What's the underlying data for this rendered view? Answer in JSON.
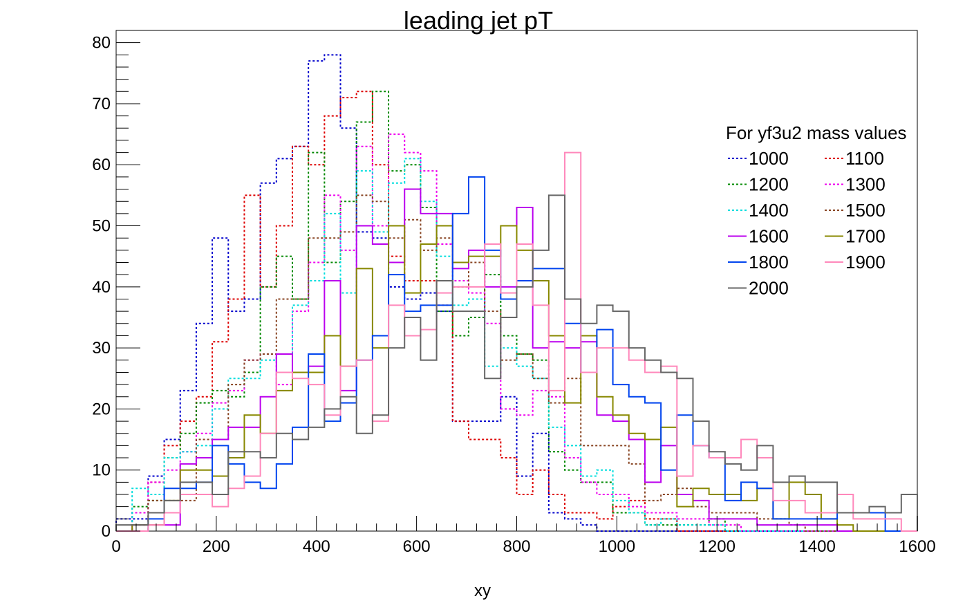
{
  "chart_data": {
    "type": "line",
    "drawstyle": "step-histogram",
    "title": "leading jet pT",
    "xlabel": "xy",
    "ylabel": "",
    "xlim": [
      0,
      1600
    ],
    "ylim": [
      0,
      82
    ],
    "bin_width": 32,
    "bin_edges_start": 0,
    "x_ticks": [
      0,
      200,
      400,
      600,
      800,
      1000,
      1200,
      1400,
      1600
    ],
    "y_ticks": [
      0,
      10,
      20,
      30,
      40,
      50,
      60,
      70,
      80
    ],
    "grid": false,
    "legend": {
      "title": "For yf3u2 mass values",
      "placement": "top-right",
      "columns": 2
    },
    "series": [
      {
        "name": "1000",
        "color": "#0000cc",
        "dashed": true,
        "values": [
          2,
          2,
          9,
          15,
          23,
          34,
          48,
          36,
          38,
          57,
          61,
          63,
          77,
          78,
          66,
          49,
          48,
          40,
          38,
          39,
          36,
          18,
          18,
          18,
          22,
          9,
          16,
          3,
          2,
          1,
          0,
          0,
          0,
          0,
          0,
          0,
          0,
          0,
          0,
          0,
          0,
          0,
          0,
          0,
          0,
          0,
          0,
          0,
          0,
          0
        ]
      },
      {
        "name": "1100",
        "color": "#dd0000",
        "dashed": true,
        "values": [
          0,
          1,
          8,
          14,
          18,
          22,
          31,
          38,
          55,
          40,
          50,
          63,
          60,
          68,
          71,
          72,
          60,
          45,
          41,
          41,
          37,
          18,
          15,
          15,
          12,
          6,
          10,
          6,
          3,
          3,
          2,
          4,
          5,
          2,
          2,
          0,
          0,
          0,
          0,
          0,
          0,
          0,
          0,
          0,
          0,
          0,
          0,
          0,
          0,
          0
        ]
      },
      {
        "name": "1200",
        "color": "#008800",
        "dashed": true,
        "values": [
          0,
          4,
          5,
          12,
          16,
          21,
          23,
          22,
          26,
          40,
          45,
          38,
          62,
          44,
          54,
          67,
          72,
          59,
          60,
          53,
          36,
          32,
          35,
          42,
          32,
          29,
          28,
          13,
          10,
          8,
          8,
          3,
          3,
          1,
          1,
          1,
          1,
          2,
          0,
          0,
          0,
          0,
          0,
          0,
          0,
          0,
          0,
          0,
          0,
          0
        ]
      },
      {
        "name": "1300",
        "color": "#ee00ee",
        "dashed": true,
        "values": [
          0,
          3,
          8,
          10,
          13,
          16,
          21,
          23,
          28,
          29,
          24,
          36,
          44,
          55,
          46,
          63,
          50,
          65,
          62,
          59,
          47,
          41,
          39,
          34,
          20,
          19,
          23,
          22,
          12,
          8,
          6,
          6,
          4,
          3,
          3,
          2,
          2,
          1,
          1,
          0,
          0,
          0,
          0,
          0,
          0,
          0,
          0,
          0,
          0,
          0
        ]
      },
      {
        "name": "1400",
        "color": "#00dddd",
        "dashed": true,
        "values": [
          0,
          7,
          6,
          12,
          13,
          14,
          20,
          25,
          25,
          28,
          29,
          37,
          41,
          52,
          39,
          59,
          49,
          57,
          61,
          54,
          45,
          37,
          38,
          27,
          30,
          27,
          25,
          17,
          14,
          9,
          10,
          5,
          3,
          1,
          2,
          1,
          1,
          1,
          0,
          0,
          0,
          0,
          0,
          0,
          0,
          0,
          0,
          0,
          0,
          0
        ]
      },
      {
        "name": "1500",
        "color": "#884422",
        "dashed": true,
        "values": [
          0,
          0,
          5,
          5,
          5,
          15,
          15,
          24,
          28,
          29,
          38,
          38,
          48,
          48,
          49,
          55,
          54,
          48,
          51,
          46,
          48,
          40,
          44,
          36,
          28,
          29,
          25,
          21,
          25,
          14,
          14,
          14,
          11,
          5,
          6,
          7,
          4,
          3,
          3,
          3,
          2,
          2,
          1,
          0,
          0,
          0,
          0,
          0,
          0,
          0
        ]
      },
      {
        "name": "1600",
        "color": "#bb00ee",
        "dashed": false,
        "values": [
          0,
          1,
          1,
          1,
          11,
          12,
          15,
          17,
          17,
          22,
          29,
          26,
          27,
          41,
          23,
          50,
          47,
          44,
          56,
          52,
          52,
          43,
          46,
          40,
          40,
          53,
          30,
          31,
          30,
          31,
          19,
          18,
          15,
          8,
          14,
          6,
          5,
          2,
          2,
          2,
          1,
          1,
          1,
          1,
          1,
          0,
          0,
          0,
          0,
          0
        ]
      },
      {
        "name": "1700",
        "color": "#888800",
        "dashed": false,
        "values": [
          0,
          1,
          1,
          5,
          10,
          10,
          9,
          12,
          19,
          16,
          23,
          26,
          26,
          32,
          27,
          43,
          30,
          50,
          39,
          47,
          50,
          44,
          45,
          45,
          50,
          46,
          41,
          32,
          21,
          32,
          22,
          19,
          16,
          15,
          17,
          4,
          7,
          6,
          6,
          5,
          7,
          2,
          8,
          6,
          2,
          1,
          0,
          0,
          0,
          0
        ]
      },
      {
        "name": "1800",
        "color": "#0044ee",
        "dashed": false,
        "values": [
          0,
          0,
          2,
          7,
          7,
          8,
          14,
          11,
          8,
          7,
          11,
          17,
          29,
          18,
          21,
          28,
          32,
          42,
          36,
          37,
          37,
          52,
          58,
          46,
          38,
          41,
          43,
          43,
          34,
          26,
          33,
          24,
          22,
          21,
          10,
          19,
          14,
          12,
          5,
          8,
          7,
          2,
          2,
          2,
          2,
          3,
          3,
          3,
          0,
          0
        ]
      },
      {
        "name": "1900",
        "color": "#ff88bb",
        "dashed": false,
        "values": [
          0,
          0,
          1,
          3,
          6,
          6,
          4,
          7,
          9,
          16,
          26,
          25,
          24,
          19,
          27,
          28,
          18,
          37,
          32,
          33,
          39,
          40,
          40,
          47,
          39,
          47,
          37,
          23,
          62,
          26,
          30,
          30,
          28,
          26,
          27,
          9,
          14,
          12,
          12,
          15,
          12,
          5,
          5,
          3,
          3,
          6,
          2,
          2,
          2,
          0
        ]
      },
      {
        "name": "2000",
        "color": "#666666",
        "dashed": false,
        "values": [
          1,
          1,
          3,
          5,
          8,
          8,
          6,
          13,
          13,
          12,
          16,
          15,
          17,
          20,
          22,
          16,
          19,
          30,
          35,
          28,
          41,
          36,
          36,
          25,
          35,
          40,
          46,
          55,
          38,
          34,
          37,
          36,
          30,
          28,
          26,
          25,
          18,
          13,
          11,
          10,
          14,
          8,
          9,
          8,
          8,
          3,
          3,
          4,
          3,
          6
        ]
      }
    ]
  }
}
